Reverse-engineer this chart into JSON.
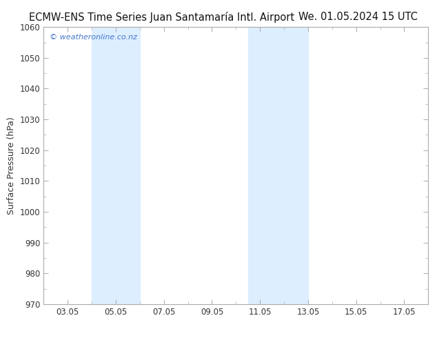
{
  "title_left": "ECMW-ENS Time Series Juan Santamaría Intl. Airport",
  "title_right": "We. 01.05.2024 15 UTC",
  "ylabel": "Surface Pressure (hPa)",
  "watermark": "© weatheronline.co.nz",
  "ylim": [
    970,
    1060
  ],
  "yticks": [
    970,
    980,
    990,
    1000,
    1010,
    1020,
    1030,
    1040,
    1050,
    1060
  ],
  "xtick_labels": [
    "03.05",
    "05.05",
    "07.05",
    "09.05",
    "11.05",
    "13.05",
    "15.05",
    "17.05"
  ],
  "xtick_positions": [
    3,
    5,
    7,
    9,
    11,
    13,
    15,
    17
  ],
  "xlim": [
    2,
    18
  ],
  "shaded_bands": [
    {
      "x_start": 4.0,
      "x_end": 6.0
    },
    {
      "x_start": 10.5,
      "x_end": 13.0
    }
  ],
  "band_color": "#ddeeff",
  "background_color": "#ffffff",
  "plot_bg_color": "#ffffff",
  "title_fontsize": 10.5,
  "axis_label_fontsize": 9,
  "tick_fontsize": 8.5,
  "watermark_color": "#4477cc",
  "watermark_fontsize": 8,
  "spine_color": "#aaaaaa",
  "tick_color": "#333333",
  "grid_color": "#e0e0e0"
}
